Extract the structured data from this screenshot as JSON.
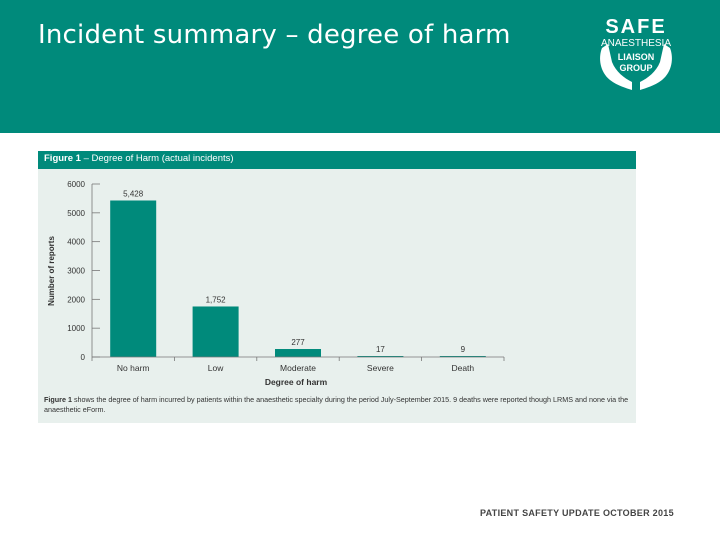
{
  "slide": {
    "title": "Incident summary – degree of harm"
  },
  "logo": {
    "line1": "SAFE",
    "line2": "ANAESTHESIA",
    "line3": "LIAISON",
    "line4": "GROUP"
  },
  "figure": {
    "label": "Figure 1",
    "heading": " – Degree of Harm (actual incidents)",
    "caption_label": "Figure 1",
    "caption": " shows the degree of harm incurred by patients within the anaesthetic specialty during the period July-September 2015. 9 deaths were reported though LRMS and none via the anaesthetic eForm."
  },
  "chart_data": {
    "type": "bar",
    "title": "Degree of Harm (actual incidents)",
    "xlabel": "Degree of harm",
    "ylabel": "Number of reports",
    "categories": [
      "No harm",
      "Low",
      "Moderate",
      "Severe",
      "Death"
    ],
    "values": [
      5428,
      1752,
      277,
      17,
      9
    ],
    "data_labels": [
      "5,428",
      "1,752",
      "277",
      "17",
      "9"
    ],
    "ylim": [
      0,
      6000
    ],
    "yticks": [
      0,
      1000,
      2000,
      3000,
      4000,
      5000,
      6000
    ],
    "bar_color": "#008a7b",
    "grid": false
  },
  "footer": {
    "text": "PATIENT SAFETY UPDATE OCTOBER 2015"
  },
  "colors": {
    "brand": "#008a7b",
    "panel": "#e8f0ed"
  }
}
